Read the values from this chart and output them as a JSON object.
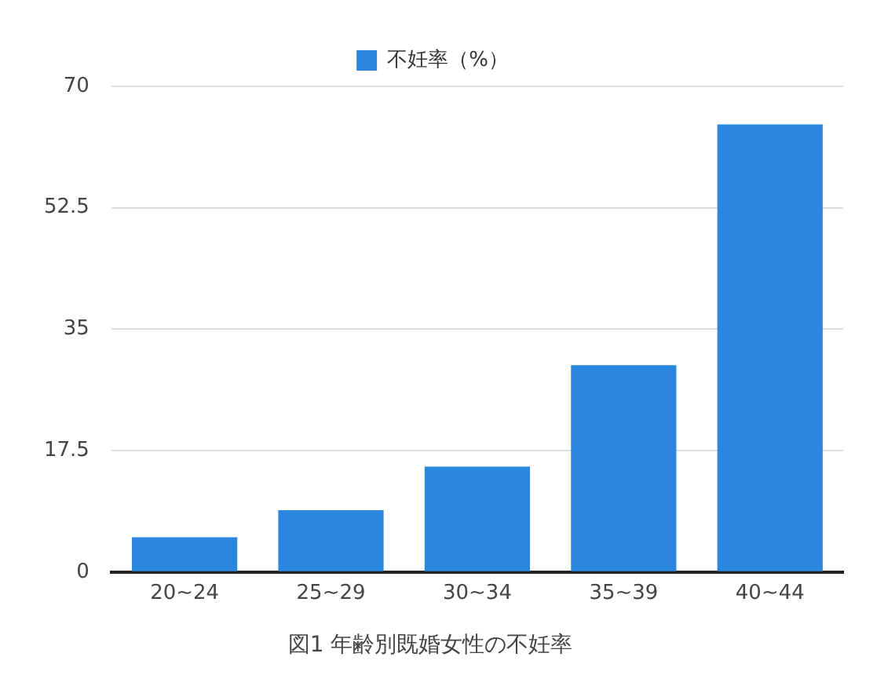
{
  "chart_data": {
    "type": "bar",
    "categories": [
      "20~24",
      "25~29",
      "30~34",
      "35~39",
      "40~44"
    ],
    "series": [
      {
        "name": "不妊率（%）",
        "color": "#2b86e0",
        "values": [
          5,
          8.9,
          15.2,
          29.8,
          64.5
        ]
      }
    ],
    "ylim": [
      0,
      70
    ],
    "yticks": [
      0,
      17.5,
      35,
      52.5,
      70
    ],
    "grid": "y",
    "legend": "top",
    "annotations": [
      "図1 年齢別既婚女性の不妊率"
    ]
  }
}
